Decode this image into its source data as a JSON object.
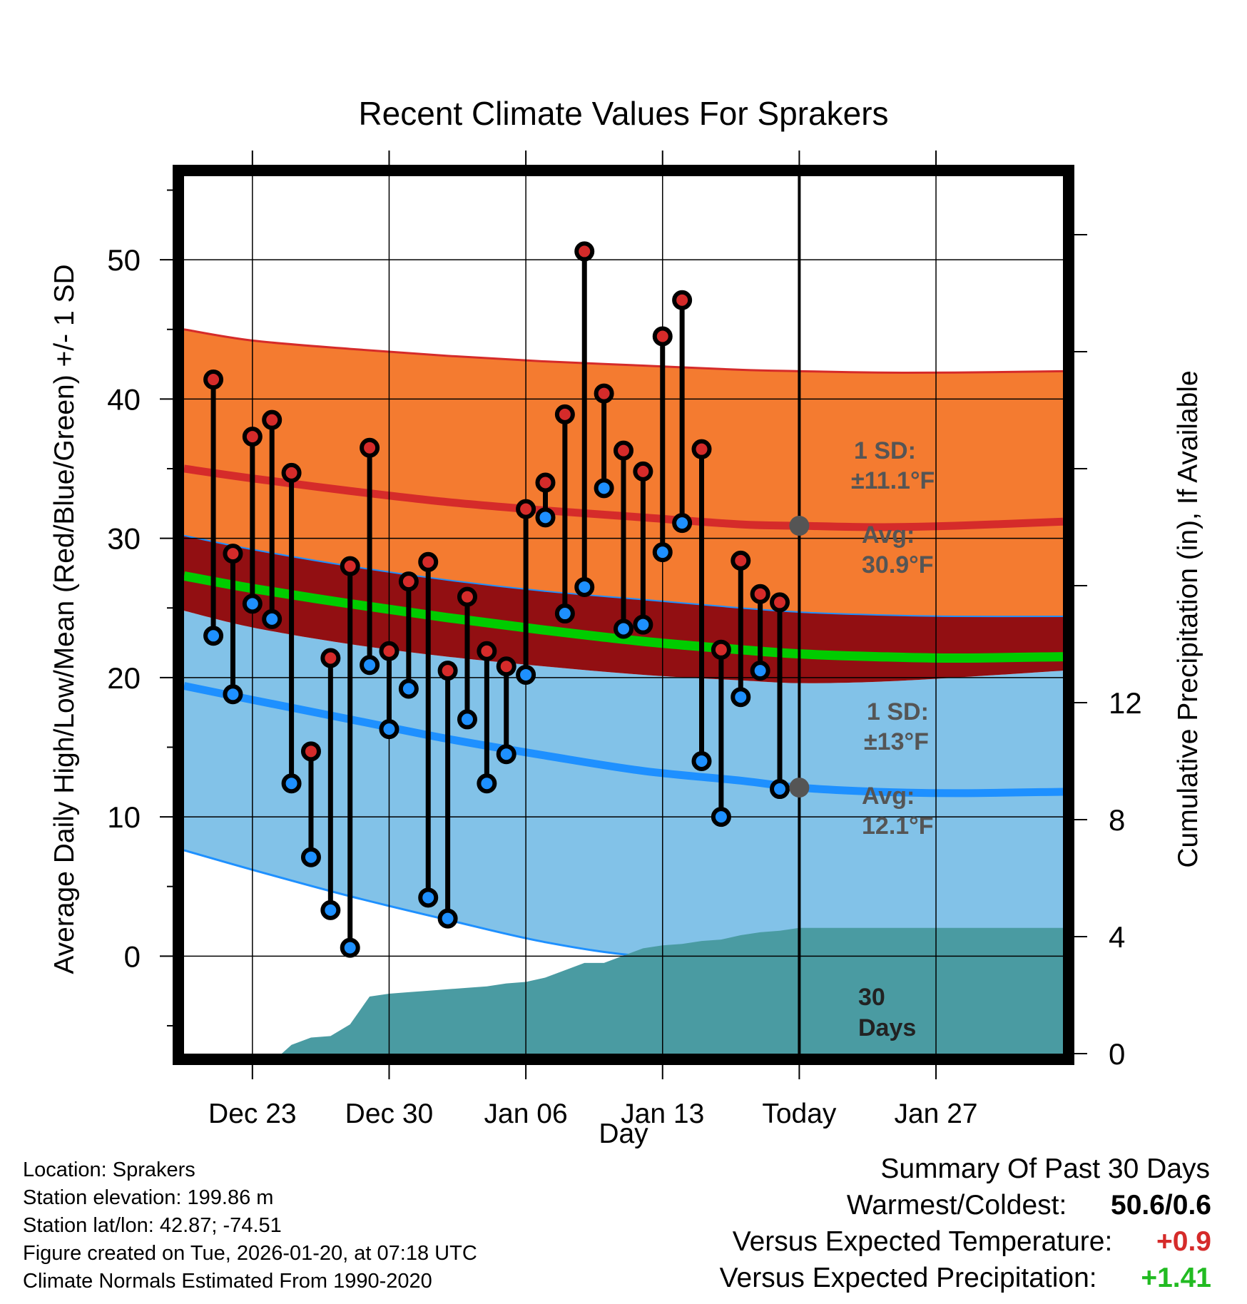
{
  "chart_data": {
    "type": "line",
    "title": "Recent Climate Values For Sprakers",
    "xlabel": "Day",
    "ylabel": "Average Daily High/Low/Mean (Red/Blue/Green) +/- 1 SD",
    "y2label": "Cumulative Precipitation (in), If Available",
    "ylim": [
      -7,
      56
    ],
    "y2lim": [
      0,
      30
    ],
    "xlim": [
      -3.5,
      41.5
    ],
    "yticks": [
      0,
      10,
      20,
      30,
      40,
      50
    ],
    "y2ticks": [
      0,
      4,
      8,
      12
    ],
    "xtick_positions": [
      0,
      7,
      14,
      21,
      28,
      35
    ],
    "xtick_labels": [
      "Dec 23",
      "Dec 30",
      "Jan 06",
      "Jan 13",
      "Today",
      "Jan 27"
    ],
    "today_index": 28,
    "today_label": [
      "30",
      "Days"
    ],
    "days_x": [
      -2,
      -1,
      0,
      1,
      2,
      3,
      4,
      5,
      6,
      7,
      8,
      9,
      10,
      11,
      12,
      13,
      14,
      15,
      16,
      17,
      18,
      19,
      20,
      21,
      22,
      23,
      24,
      25,
      26,
      27
    ],
    "highs": [
      41.4,
      28.9,
      37.3,
      38.5,
      34.7,
      14.7,
      21.4,
      28.0,
      36.5,
      21.9,
      26.9,
      28.3,
      20.5,
      25.8,
      21.9,
      20.8,
      32.1,
      34.0,
      38.9,
      50.6,
      40.4,
      36.3,
      34.8,
      44.5,
      47.1,
      36.4,
      22.0,
      28.4,
      26.0,
      25.4
    ],
    "lows": [
      23.0,
      18.8,
      25.3,
      24.2,
      12.4,
      7.1,
      3.3,
      0.6,
      20.9,
      16.3,
      19.2,
      4.2,
      2.7,
      17.0,
      12.4,
      14.5,
      20.2,
      31.5,
      24.6,
      26.5,
      33.6,
      23.5,
      23.8,
      29.0,
      31.1,
      14.0,
      10.0,
      18.6,
      20.5,
      12.0
    ],
    "normal_high": {
      "x": [
        -3.5,
        0,
        5,
        10,
        15,
        20,
        25,
        28,
        32,
        36,
        41.5
      ],
      "mean": [
        35.0,
        34.3,
        33.4,
        32.6,
        32.0,
        31.5,
        31.0,
        30.9,
        30.8,
        30.9,
        31.2
      ],
      "upper": [
        45.0,
        44.2,
        43.6,
        43.1,
        42.7,
        42.4,
        42.1,
        42.0,
        41.9,
        41.9,
        42.0
      ],
      "lower": [
        30.2,
        29.2,
        28.0,
        27.0,
        26.2,
        25.6,
        25.0,
        24.7,
        24.5,
        24.4,
        24.4
      ]
    },
    "normal_mean": {
      "x": [
        -3.5,
        0,
        5,
        10,
        15,
        20,
        25,
        28,
        32,
        36,
        41.5
      ],
      "values": [
        27.3,
        26.4,
        25.3,
        24.3,
        23.4,
        22.6,
        22.0,
        21.7,
        21.5,
        21.4,
        21.5
      ]
    },
    "normal_low": {
      "x": [
        -3.5,
        0,
        5,
        10,
        15,
        20,
        25,
        28,
        32,
        36,
        41.5
      ],
      "mean": [
        19.4,
        18.4,
        17.0,
        15.6,
        14.4,
        13.3,
        12.6,
        12.1,
        11.8,
        11.7,
        11.8
      ],
      "upper": [
        24.8,
        23.6,
        22.4,
        21.5,
        20.8,
        20.2,
        19.8,
        19.6,
        19.7,
        20.0,
        20.5
      ],
      "lower": [
        7.6,
        6.2,
        4.3,
        2.6,
        1.0,
        0,
        0,
        0,
        0,
        0,
        0
      ]
    },
    "precip_cum": {
      "x": [
        1.5,
        2,
        3,
        4,
        5,
        6,
        7,
        8,
        9,
        10,
        11,
        12,
        13,
        14,
        15,
        16,
        17,
        18,
        19,
        20,
        21,
        22,
        23,
        24,
        25,
        26,
        27,
        28,
        41.5
      ],
      "values": [
        0,
        0.3,
        0.55,
        0.6,
        1.0,
        1.95,
        2.05,
        2.1,
        2.15,
        2.2,
        2.25,
        2.3,
        2.4,
        2.45,
        2.6,
        2.85,
        3.1,
        3.1,
        3.35,
        3.6,
        3.7,
        3.75,
        3.85,
        3.9,
        4.05,
        4.15,
        4.2,
        4.3,
        4.3
      ]
    },
    "annotations": {
      "high_sd_label": "1 SD:",
      "high_sd_value": "±11.1°F",
      "high_avg_label": "Avg:",
      "high_avg_value": "30.9°F",
      "low_sd_label": "1 SD:",
      "low_sd_value": "±13°F",
      "low_avg_label": "Avg:",
      "low_avg_value": "12.1°F"
    },
    "colors": {
      "orange_band": "#f47b30",
      "high_line": "#d52b2a",
      "mean_band": "#920f12",
      "mean_line": "#00cc00",
      "blue_band": "#82c2e8",
      "low_line": "#1e90ff",
      "precip": "#4a9ba2",
      "high_dot": "#d52b2a",
      "low_dot": "#1e90ff"
    }
  },
  "footer": {
    "location": "Location: Sprakers",
    "elevation": "Station elevation: 199.86 m",
    "latlon": "Station lat/lon: 42.87; -74.51",
    "created": "Figure created on Tue, 2026-01-20, at 07:18 UTC",
    "normals": "Climate Normals Estimated From 1990-2020"
  },
  "summary": {
    "title": "Summary Of Past 30 Days",
    "warm_cold_label": "Warmest/Coldest:",
    "warm_cold_value": "50.6/0.6",
    "temp_label": "Versus Expected Temperature:",
    "temp_value": "+0.9",
    "temp_color": "#d52b2a",
    "precip_label": "Versus Expected Precipitation:",
    "precip_value": "+1.41",
    "precip_color": "#22bb22"
  }
}
